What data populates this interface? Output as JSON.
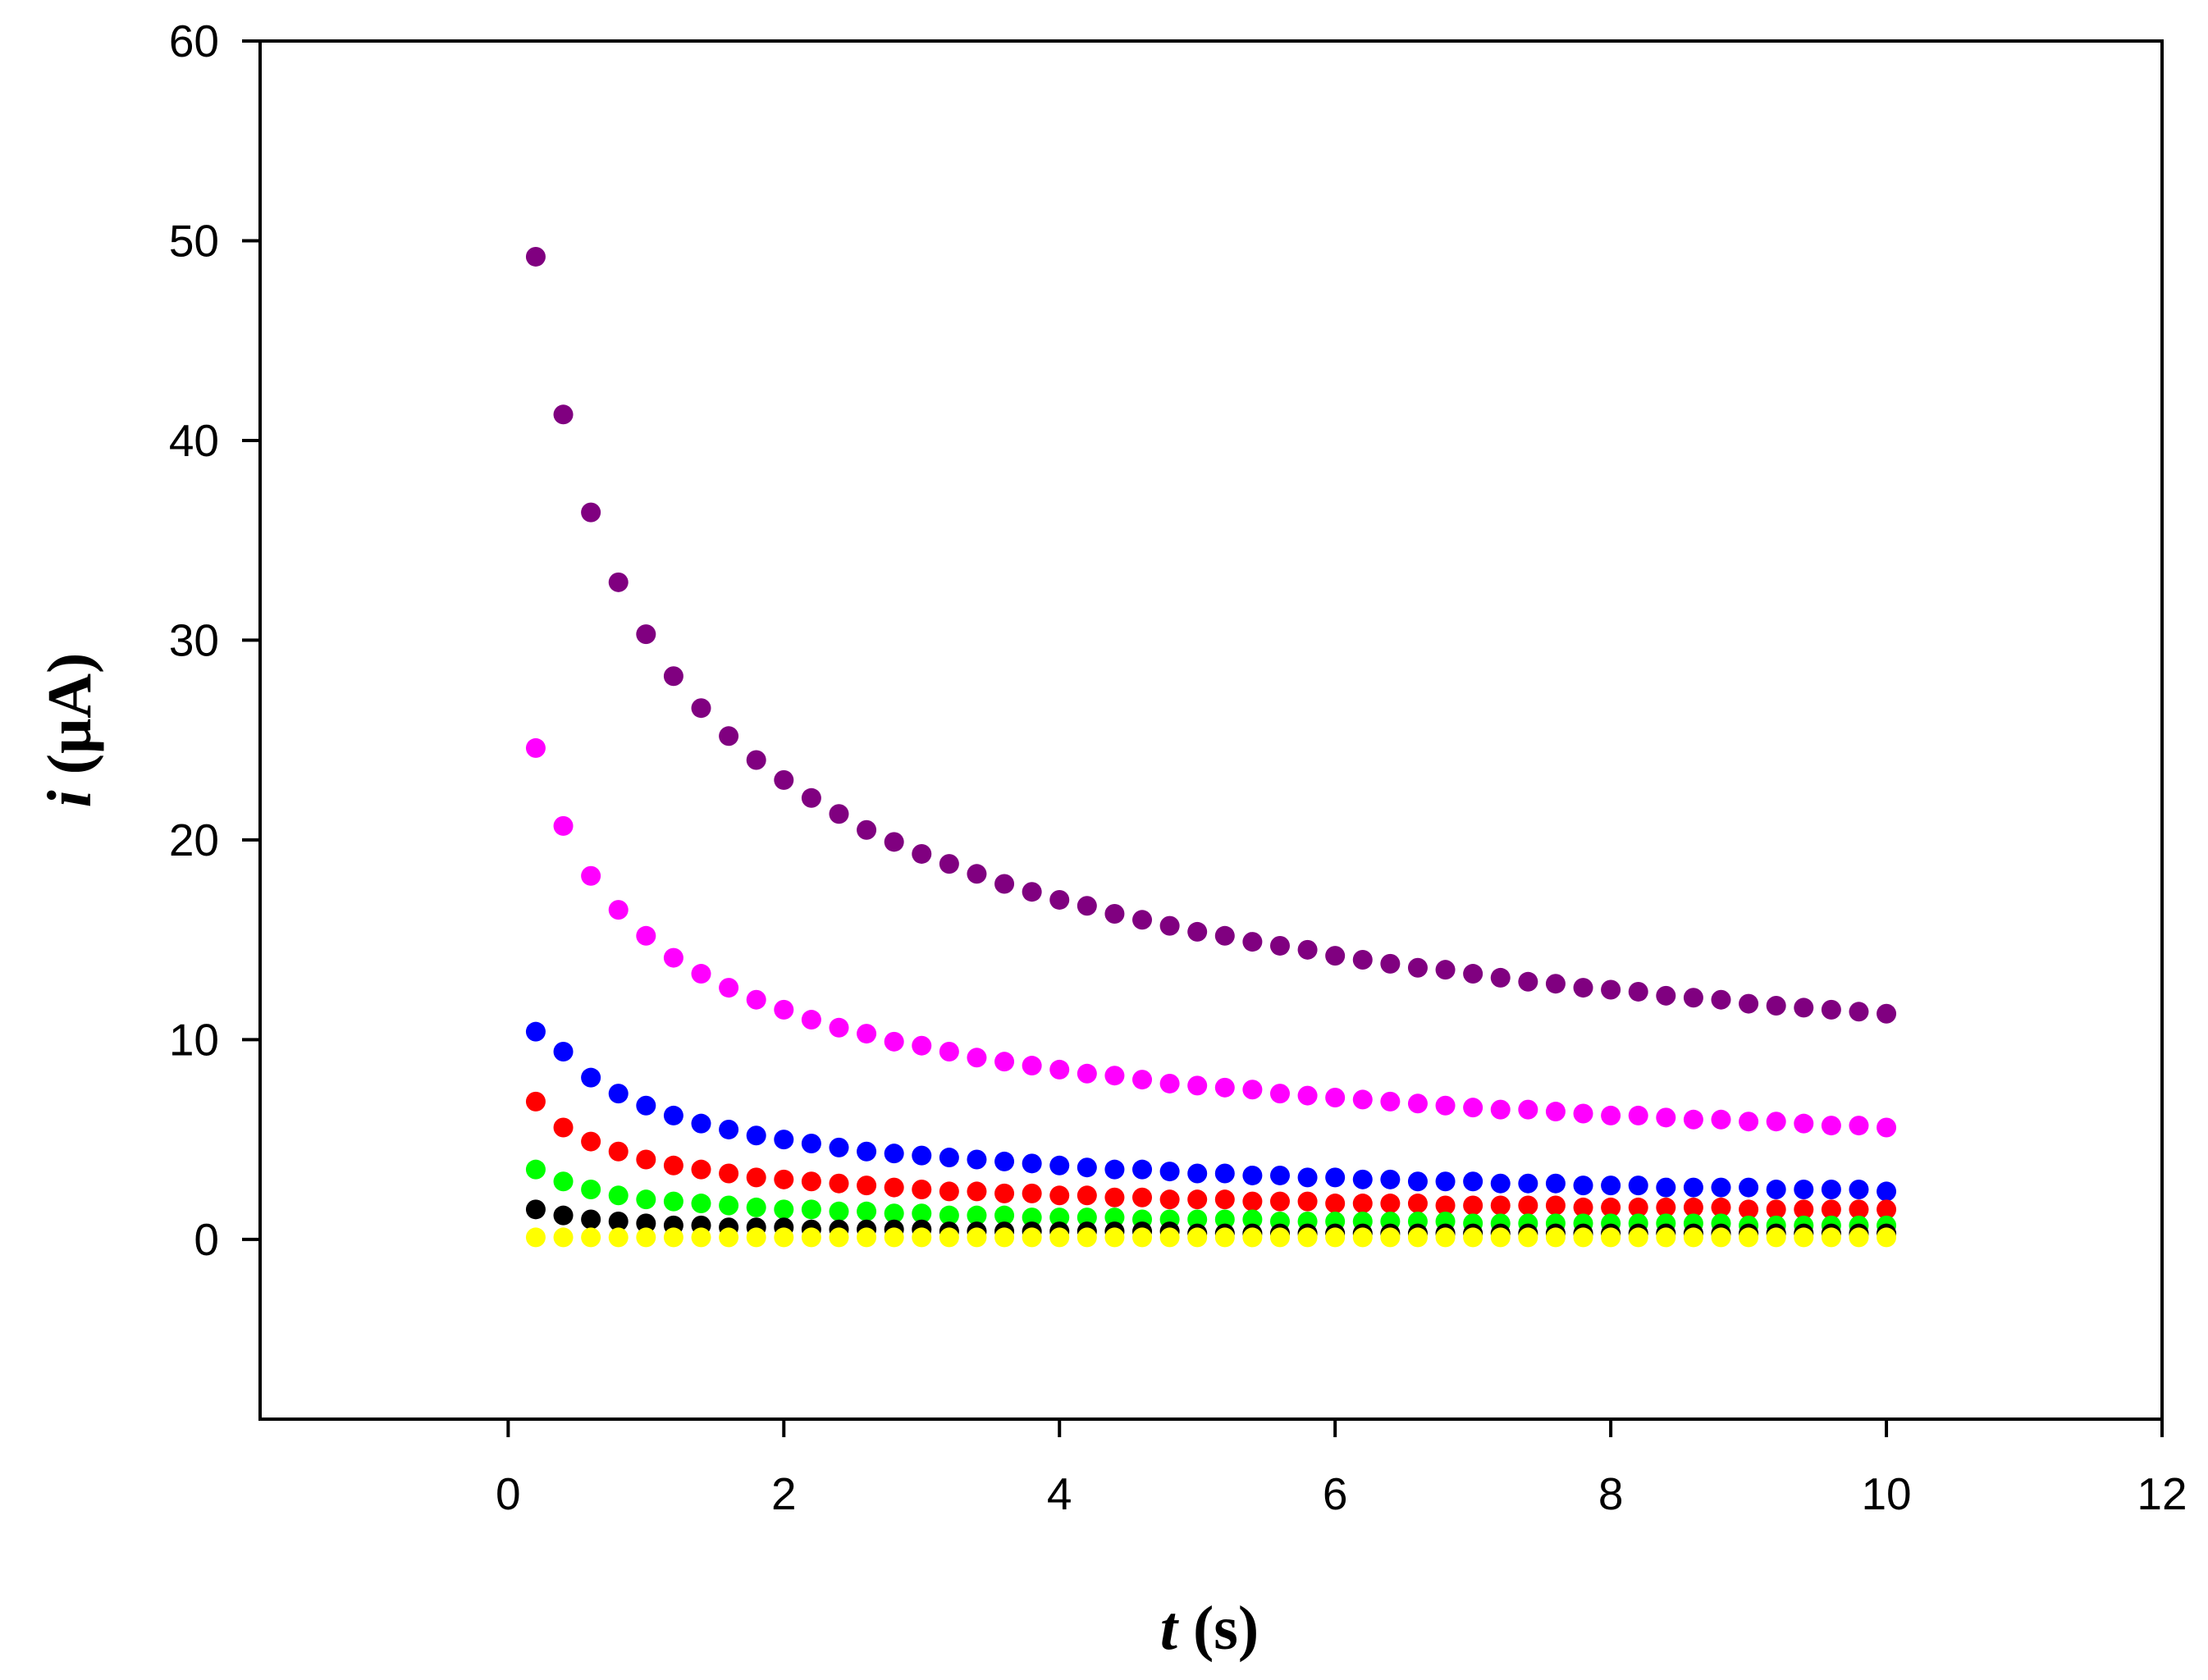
{
  "chart_data": {
    "type": "scatter",
    "title": "",
    "xlabel": {
      "symbol": "t",
      "unit": "(s)"
    },
    "ylabel": {
      "symbol": "i",
      "unit": "(μA)"
    },
    "xlim": [
      -1.8,
      12
    ],
    "ylim": [
      -9,
      60
    ],
    "xticks": [
      0,
      2,
      4,
      6,
      8,
      10,
      12
    ],
    "yticks": [
      0,
      10,
      20,
      30,
      40,
      50,
      60
    ],
    "grid": false,
    "legend": "none",
    "x": [
      0.2,
      0.4,
      0.6,
      0.8,
      1.0,
      1.2,
      1.4,
      1.6,
      1.8,
      2.0,
      2.2,
      2.4,
      2.6,
      2.8,
      3.0,
      3.2,
      3.4,
      3.6,
      3.8,
      4.0,
      4.2,
      4.4,
      4.6,
      4.8,
      5.0,
      5.2,
      5.4,
      5.6,
      5.8,
      6.0,
      6.2,
      6.4,
      6.6,
      6.8,
      7.0,
      7.2,
      7.4,
      7.6,
      7.8,
      8.0,
      8.2,
      8.4,
      8.6,
      8.8,
      9.0,
      9.2,
      9.4,
      9.6,
      9.8,
      10.0
    ],
    "series": [
      {
        "name": "purple",
        "color": "#800080",
        "values": [
          49.2,
          41.3,
          36.4,
          32.9,
          30.3,
          28.2,
          26.6,
          25.2,
          24.0,
          23.0,
          22.1,
          21.3,
          20.5,
          19.9,
          19.3,
          18.8,
          18.3,
          17.8,
          17.4,
          17.0,
          16.7,
          16.3,
          16.0,
          15.7,
          15.4,
          15.2,
          14.9,
          14.7,
          14.5,
          14.2,
          14.0,
          13.8,
          13.6,
          13.5,
          13.3,
          13.1,
          12.9,
          12.8,
          12.6,
          12.5,
          12.4,
          12.2,
          12.1,
          12.0,
          11.8,
          11.7,
          11.6,
          11.5,
          11.4,
          11.3
        ]
      },
      {
        "name": "magenta",
        "color": "#ff00ff",
        "values": [
          24.6,
          20.7,
          18.2,
          16.5,
          15.2,
          14.1,
          13.3,
          12.6,
          12.0,
          11.5,
          11.0,
          10.6,
          10.3,
          9.9,
          9.7,
          9.4,
          9.1,
          8.9,
          8.7,
          8.5,
          8.3,
          8.2,
          8.0,
          7.8,
          7.7,
          7.6,
          7.5,
          7.3,
          7.2,
          7.1,
          7.0,
          6.9,
          6.8,
          6.7,
          6.6,
          6.5,
          6.5,
          6.4,
          6.3,
          6.2,
          6.2,
          6.1,
          6.0,
          6.0,
          5.9,
          5.9,
          5.8,
          5.7,
          5.7,
          5.6
        ]
      },
      {
        "name": "blue",
        "color": "#0000ff",
        "values": [
          10.4,
          9.4,
          8.1,
          7.3,
          6.7,
          6.2,
          5.8,
          5.5,
          5.2,
          5.0,
          4.8,
          4.6,
          4.4,
          4.3,
          4.2,
          4.1,
          4.0,
          3.9,
          3.8,
          3.7,
          3.6,
          3.5,
          3.5,
          3.4,
          3.3,
          3.3,
          3.2,
          3.2,
          3.1,
          3.1,
          3.0,
          3.0,
          2.9,
          2.9,
          2.9,
          2.8,
          2.8,
          2.8,
          2.7,
          2.7,
          2.7,
          2.6,
          2.6,
          2.6,
          2.6,
          2.5,
          2.5,
          2.5,
          2.5,
          2.4
        ]
      },
      {
        "name": "red",
        "color": "#ff0000",
        "values": [
          6.9,
          5.6,
          4.9,
          4.4,
          4.0,
          3.7,
          3.5,
          3.3,
          3.1,
          3.0,
          2.9,
          2.8,
          2.7,
          2.6,
          2.5,
          2.4,
          2.4,
          2.3,
          2.3,
          2.2,
          2.2,
          2.1,
          2.1,
          2.0,
          2.0,
          2.0,
          1.9,
          1.9,
          1.9,
          1.8,
          1.8,
          1.8,
          1.8,
          1.7,
          1.7,
          1.7,
          1.7,
          1.7,
          1.6,
          1.6,
          1.6,
          1.6,
          1.6,
          1.6,
          1.5,
          1.5,
          1.5,
          1.5,
          1.5,
          1.5
        ]
      },
      {
        "name": "green",
        "color": "#00ff00",
        "values": [
          3.5,
          2.9,
          2.5,
          2.2,
          2.0,
          1.9,
          1.8,
          1.7,
          1.6,
          1.5,
          1.5,
          1.4,
          1.4,
          1.3,
          1.3,
          1.2,
          1.2,
          1.2,
          1.1,
          1.1,
          1.1,
          1.1,
          1.0,
          1.0,
          1.0,
          1.0,
          1.0,
          0.9,
          0.9,
          0.9,
          0.9,
          0.9,
          0.9,
          0.9,
          0.8,
          0.8,
          0.8,
          0.8,
          0.8,
          0.8,
          0.8,
          0.8,
          0.8,
          0.8,
          0.7,
          0.7,
          0.7,
          0.7,
          0.7,
          0.7
        ]
      },
      {
        "name": "black",
        "color": "#000000",
        "values": [
          1.5,
          1.2,
          1.0,
          0.9,
          0.8,
          0.7,
          0.7,
          0.6,
          0.6,
          0.6,
          0.5,
          0.5,
          0.5,
          0.5,
          0.5,
          0.4,
          0.4,
          0.4,
          0.4,
          0.4,
          0.4,
          0.4,
          0.4,
          0.4,
          0.3,
          0.3,
          0.3,
          0.3,
          0.3,
          0.3,
          0.3,
          0.3,
          0.3,
          0.3,
          0.3,
          0.3,
          0.3,
          0.3,
          0.3,
          0.3,
          0.3,
          0.3,
          0.3,
          0.3,
          0.3,
          0.3,
          0.3,
          0.3,
          0.3,
          0.3
        ]
      },
      {
        "name": "yellow",
        "color": "#ffff00",
        "values": [
          0.1,
          0.1,
          0.1,
          0.1,
          0.1,
          0.1,
          0.1,
          0.1,
          0.1,
          0.1,
          0.1,
          0.1,
          0.1,
          0.1,
          0.1,
          0.1,
          0.1,
          0.1,
          0.1,
          0.1,
          0.1,
          0.1,
          0.1,
          0.1,
          0.1,
          0.1,
          0.1,
          0.1,
          0.1,
          0.1,
          0.1,
          0.1,
          0.1,
          0.1,
          0.1,
          0.1,
          0.1,
          0.1,
          0.1,
          0.1,
          0.1,
          0.1,
          0.1,
          0.1,
          0.1,
          0.1,
          0.1,
          0.1,
          0.1,
          0.1
        ]
      }
    ]
  }
}
